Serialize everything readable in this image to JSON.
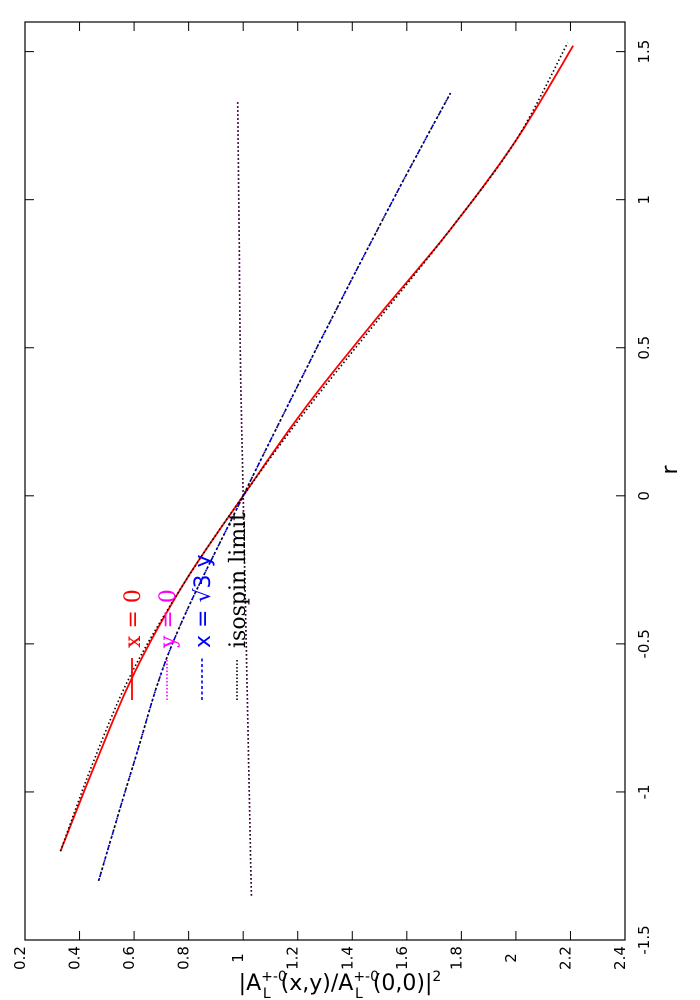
{
  "chart_data": {
    "type": "line",
    "orientation": "rotated-90-ccw",
    "xlabel": "r",
    "ylabel": "|A",
    "ylabel_parts": {
      "bar_open": "|A",
      "sup1": "+-0",
      "sub1": "L",
      "args1": "(x,y)/A",
      "sup2": "+-0",
      "sub2": "L",
      "args2": "(0,0)|",
      "power": "2"
    },
    "xlim": [
      -1.5,
      1.6
    ],
    "ylim": [
      0.2,
      2.4
    ],
    "x_ticks": [
      "-1.5",
      "-1",
      "-0.5",
      "0",
      "0.5",
      "1",
      "1.5"
    ],
    "y_ticks": [
      "0.2",
      "0.4",
      "0.6",
      "0.8",
      "1",
      "1.2",
      "1.4",
      "1.6",
      "1.8",
      "2",
      "2.2",
      "2.4"
    ],
    "x_tick_values": [
      -1.5,
      -1,
      -0.5,
      0,
      0.5,
      1,
      1.5
    ],
    "y_tick_values": [
      0.2,
      0.4,
      0.6,
      0.8,
      1.0,
      1.2,
      1.4,
      1.6,
      1.8,
      2.0,
      2.2,
      2.4
    ],
    "legend_position": "top-left",
    "grid": false,
    "series": [
      {
        "name": "x = 0",
        "color": "#ff0000",
        "dash": "solid",
        "x": [
          -1.2,
          -0.9,
          -0.6,
          -0.3,
          0.0,
          0.3,
          0.6,
          0.9,
          1.2,
          1.52
        ],
        "y": [
          0.33,
          0.46,
          0.6,
          0.78,
          1.0,
          1.23,
          1.49,
          1.76,
          2.0,
          2.21
        ]
      },
      {
        "name": "y = 0",
        "color": "#ff00ff",
        "dash": "dotted",
        "x": [
          -1.35,
          -0.9,
          -0.45,
          0.0,
          0.45,
          0.9,
          1.33
        ],
        "y": [
          1.03,
          1.02,
          1.01,
          1.0,
          0.99,
          0.985,
          0.98
        ]
      },
      {
        "name": "x = √3 y",
        "color": "#0000ff",
        "dash": "dashed",
        "x": [
          -1.3,
          -0.9,
          -0.5,
          0.0,
          0.5,
          1.0,
          1.36
        ],
        "y": [
          0.47,
          0.6,
          0.74,
          1.0,
          1.27,
          1.55,
          1.76
        ]
      },
      {
        "name": "isospin limit",
        "color": "#000000",
        "dash": "dotted",
        "overlays": true,
        "curves": [
          {
            "x": [
              -1.2,
              -0.9,
              -0.6,
              -0.3,
              0.0,
              0.3,
              0.6,
              0.9,
              1.2,
              1.53
            ],
            "y": [
              0.33,
              0.45,
              0.59,
              0.78,
              1.0,
              1.24,
              1.5,
              1.76,
              2.0,
              2.19
            ]
          },
          {
            "x": [
              -1.35,
              -0.9,
              -0.45,
              0.0,
              0.45,
              0.9,
              1.33
            ],
            "y": [
              1.03,
              1.02,
              1.01,
              1.0,
              0.99,
              0.985,
              0.98
            ]
          },
          {
            "x": [
              -1.3,
              -0.9,
              -0.5,
              0.0,
              0.5,
              1.0,
              1.36
            ],
            "y": [
              0.47,
              0.6,
              0.74,
              1.0,
              1.27,
              1.55,
              1.76
            ]
          }
        ]
      }
    ],
    "legend": {
      "x_eq_0": "x = 0",
      "y_eq_0": "y = 0",
      "x_eq_sqrt3y_prefix": "x = ",
      "x_eq_sqrt3y_sqrt": "√3",
      "x_eq_sqrt3y_suffix": " y",
      "isospin": "isospin limit"
    }
  }
}
